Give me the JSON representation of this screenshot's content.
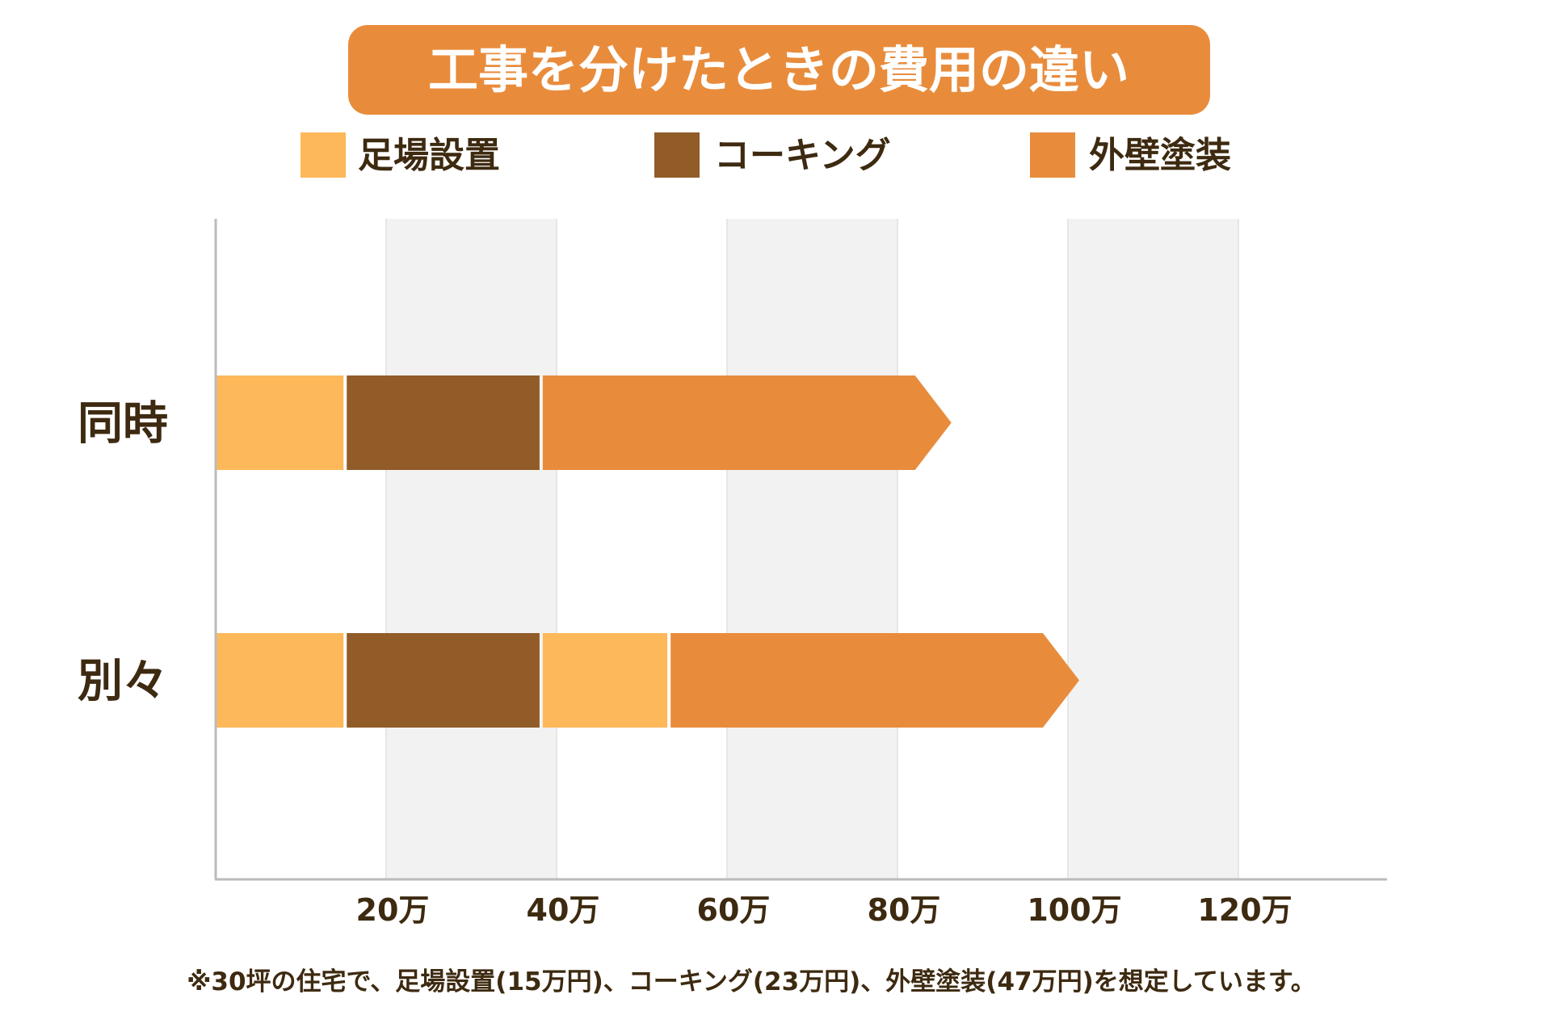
{
  "chart_data": {
    "type": "bar",
    "orientation": "horizontal-stacked",
    "title": "工事を分けたときの費用の違い",
    "categories": [
      "同時",
      "別々"
    ],
    "legend": [
      {
        "name": "足場設置",
        "color": "#FDB85A"
      },
      {
        "name": "コーキング",
        "color": "#915C28"
      },
      {
        "name": "外壁塗装",
        "color": "#E88C3C"
      }
    ],
    "legend_position": "top",
    "bars": [
      {
        "category": "同時",
        "segments": [
          {
            "name": "足場設置",
            "value": 15
          },
          {
            "name": "コーキング",
            "value": 23
          },
          {
            "name": "外壁塗装",
            "value": 47
          }
        ]
      },
      {
        "category": "別々",
        "segments": [
          {
            "name": "足場設置",
            "value": 15
          },
          {
            "name": "コーキング",
            "value": 23
          },
          {
            "name": "足場設置",
            "value": 15
          },
          {
            "name": "外壁塗装",
            "value": 47
          }
        ]
      }
    ],
    "x_ticks": [
      20,
      40,
      60,
      80,
      100,
      120
    ],
    "x_tick_labels": [
      "20万",
      "40万",
      "60万",
      "80万",
      "100万",
      "120万"
    ],
    "xlim": [
      0,
      136
    ],
    "unit": "万円",
    "grid": "alternating bands",
    "footnote": "※30坪の住宅で、足場設置(15万円)、コーキング(23万円)、外壁塗装(47万円)を想定しています。"
  },
  "colors": {
    "title_bg": "#E88C3C",
    "text": "#3D2A10",
    "band": "#F2F2F2",
    "axis": "#BBBBBB"
  }
}
